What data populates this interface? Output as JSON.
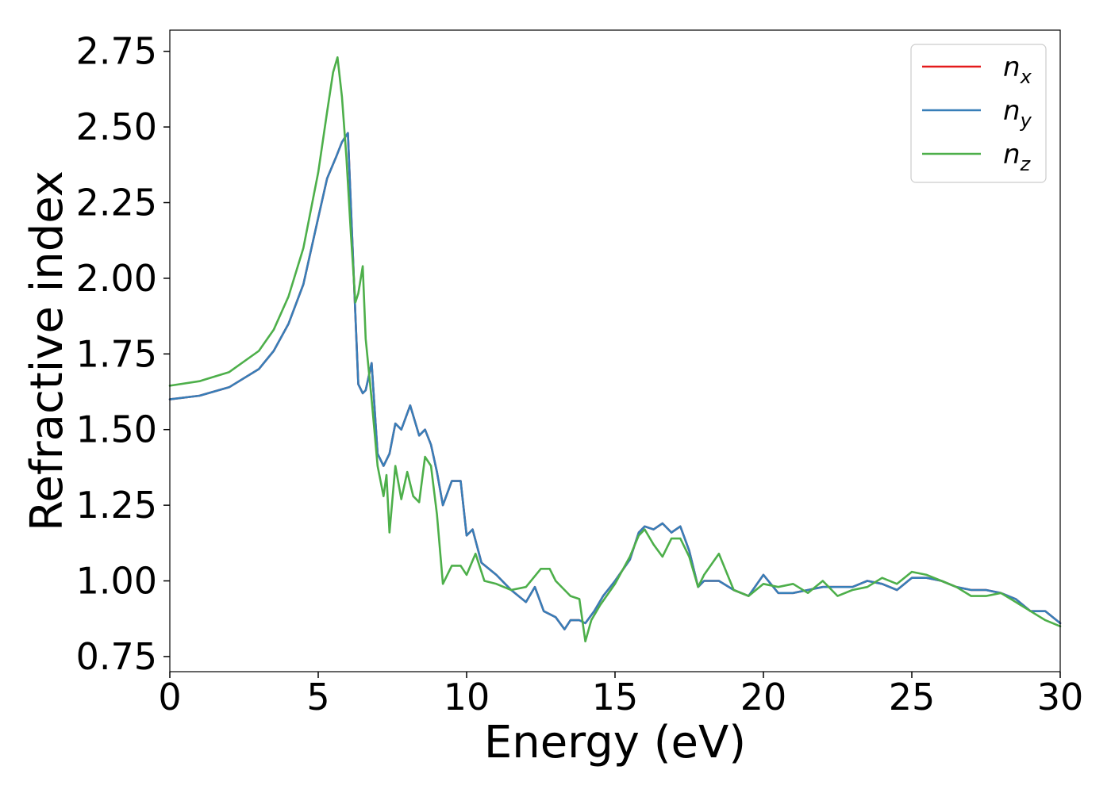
{
  "chart_data": {
    "type": "line",
    "xlabel": "Energy (eV)",
    "ylabel": "Refractive index",
    "xlim": [
      0,
      30
    ],
    "ylim": [
      0.7,
      2.82
    ],
    "xticks": [
      0,
      5,
      10,
      15,
      20,
      25,
      30
    ],
    "xtick_labels": [
      "0",
      "5",
      "10",
      "15",
      "20",
      "25",
      "30"
    ],
    "yticks": [
      0.75,
      1.0,
      1.25,
      1.5,
      1.75,
      2.0,
      2.25,
      2.5,
      2.75
    ],
    "ytick_labels": [
      "0.75",
      "1.00",
      "1.25",
      "1.50",
      "1.75",
      "2.00",
      "2.25",
      "2.50",
      "2.75"
    ],
    "grid": false,
    "legend_position": "top-right",
    "series": [
      {
        "name": "n_x",
        "legend_main": "n",
        "legend_sub": "x",
        "color": "#e41a1c",
        "x": [
          0,
          1,
          2,
          3,
          3.5,
          4,
          4.5,
          5,
          5.3,
          5.6,
          5.8,
          6.0,
          6.2,
          6.35,
          6.5,
          6.6,
          6.8,
          7.0,
          7.2,
          7.4,
          7.6,
          7.8,
          8.1,
          8.4,
          8.6,
          8.8,
          9.0,
          9.2,
          9.5,
          9.8,
          10.0,
          10.2,
          10.5,
          11.0,
          11.5,
          12.0,
          12.3,
          12.6,
          13.0,
          13.3,
          13.5,
          13.8,
          14.0,
          14.3,
          14.6,
          15.0,
          15.5,
          15.8,
          16.0,
          16.3,
          16.6,
          16.9,
          17.2,
          17.5,
          17.8,
          18.0,
          18.5,
          19.0,
          19.5,
          20.0,
          20.5,
          21.0,
          21.5,
          22.0,
          22.5,
          23.0,
          23.5,
          24.0,
          24.5,
          25.0,
          25.5,
          26.0,
          26.5,
          27.0,
          27.5,
          28.0,
          28.5,
          29.0,
          29.5,
          30.0
        ],
        "y": [
          1.6,
          1.612,
          1.64,
          1.7,
          1.76,
          1.85,
          1.98,
          2.2,
          2.33,
          2.4,
          2.45,
          2.48,
          2.0,
          1.65,
          1.62,
          1.63,
          1.72,
          1.42,
          1.38,
          1.42,
          1.52,
          1.5,
          1.58,
          1.48,
          1.5,
          1.45,
          1.36,
          1.25,
          1.33,
          1.33,
          1.15,
          1.17,
          1.06,
          1.02,
          0.97,
          0.93,
          0.98,
          0.9,
          0.88,
          0.84,
          0.87,
          0.87,
          0.86,
          0.9,
          0.95,
          1.0,
          1.07,
          1.16,
          1.18,
          1.17,
          1.19,
          1.16,
          1.18,
          1.1,
          0.98,
          1.0,
          1.0,
          0.97,
          0.95,
          1.02,
          0.96,
          0.96,
          0.97,
          0.98,
          0.98,
          0.98,
          1.0,
          0.99,
          0.97,
          1.01,
          1.01,
          1.0,
          0.98,
          0.97,
          0.97,
          0.96,
          0.94,
          0.9,
          0.9,
          0.86
        ]
      },
      {
        "name": "n_y",
        "legend_main": "n",
        "legend_sub": "y",
        "color": "#377eb8",
        "x": [
          0,
          1,
          2,
          3,
          3.5,
          4,
          4.5,
          5,
          5.3,
          5.6,
          5.8,
          6.0,
          6.2,
          6.35,
          6.5,
          6.6,
          6.8,
          7.0,
          7.2,
          7.4,
          7.6,
          7.8,
          8.1,
          8.4,
          8.6,
          8.8,
          9.0,
          9.2,
          9.5,
          9.8,
          10.0,
          10.2,
          10.5,
          11.0,
          11.5,
          12.0,
          12.3,
          12.6,
          13.0,
          13.3,
          13.5,
          13.8,
          14.0,
          14.3,
          14.6,
          15.0,
          15.5,
          15.8,
          16.0,
          16.3,
          16.6,
          16.9,
          17.2,
          17.5,
          17.8,
          18.0,
          18.5,
          19.0,
          19.5,
          20.0,
          20.5,
          21.0,
          21.5,
          22.0,
          22.5,
          23.0,
          23.5,
          24.0,
          24.5,
          25.0,
          25.5,
          26.0,
          26.5,
          27.0,
          27.5,
          28.0,
          28.5,
          29.0,
          29.5,
          30.0
        ],
        "y": [
          1.6,
          1.612,
          1.64,
          1.7,
          1.76,
          1.85,
          1.98,
          2.2,
          2.33,
          2.4,
          2.45,
          2.48,
          2.0,
          1.65,
          1.62,
          1.63,
          1.72,
          1.42,
          1.38,
          1.42,
          1.52,
          1.5,
          1.58,
          1.48,
          1.5,
          1.45,
          1.36,
          1.25,
          1.33,
          1.33,
          1.15,
          1.17,
          1.06,
          1.02,
          0.97,
          0.93,
          0.98,
          0.9,
          0.88,
          0.84,
          0.87,
          0.87,
          0.86,
          0.9,
          0.95,
          1.0,
          1.07,
          1.16,
          1.18,
          1.17,
          1.19,
          1.16,
          1.18,
          1.1,
          0.98,
          1.0,
          1.0,
          0.97,
          0.95,
          1.02,
          0.96,
          0.96,
          0.97,
          0.98,
          0.98,
          0.98,
          1.0,
          0.99,
          0.97,
          1.01,
          1.01,
          1.0,
          0.98,
          0.97,
          0.97,
          0.96,
          0.94,
          0.9,
          0.9,
          0.86
        ]
      },
      {
        "name": "n_z",
        "legend_main": "n",
        "legend_sub": "z",
        "color": "#4daf4a",
        "x": [
          0,
          1,
          2,
          3,
          3.5,
          4,
          4.5,
          5,
          5.3,
          5.5,
          5.65,
          5.8,
          5.95,
          6.1,
          6.25,
          6.35,
          6.5,
          6.6,
          6.8,
          7.0,
          7.2,
          7.3,
          7.4,
          7.6,
          7.8,
          8.0,
          8.2,
          8.4,
          8.6,
          8.8,
          9.0,
          9.2,
          9.5,
          9.8,
          10.0,
          10.3,
          10.6,
          11.0,
          11.5,
          12.0,
          12.5,
          12.8,
          13.0,
          13.5,
          13.8,
          14.0,
          14.2,
          14.5,
          15.0,
          15.5,
          15.8,
          16.0,
          16.3,
          16.6,
          16.9,
          17.2,
          17.5,
          17.8,
          18.0,
          18.5,
          19.0,
          19.5,
          20.0,
          20.5,
          21.0,
          21.5,
          22.0,
          22.5,
          23.0,
          23.5,
          24.0,
          24.5,
          25.0,
          25.5,
          26.0,
          26.5,
          27.0,
          27.5,
          28.0,
          28.5,
          29.0,
          29.5,
          30.0
        ],
        "y": [
          1.645,
          1.66,
          1.69,
          1.76,
          1.83,
          1.94,
          2.1,
          2.35,
          2.55,
          2.68,
          2.73,
          2.6,
          2.4,
          2.15,
          1.92,
          1.95,
          2.04,
          1.8,
          1.6,
          1.38,
          1.28,
          1.35,
          1.16,
          1.38,
          1.27,
          1.36,
          1.28,
          1.26,
          1.41,
          1.38,
          1.22,
          0.99,
          1.05,
          1.05,
          1.02,
          1.09,
          1.0,
          0.99,
          0.97,
          0.98,
          1.04,
          1.04,
          1.0,
          0.95,
          0.94,
          0.8,
          0.87,
          0.92,
          0.99,
          1.08,
          1.15,
          1.17,
          1.12,
          1.08,
          1.14,
          1.14,
          1.08,
          0.98,
          1.02,
          1.09,
          0.97,
          0.95,
          0.99,
          0.98,
          0.99,
          0.96,
          1.0,
          0.95,
          0.97,
          0.98,
          1.01,
          0.99,
          1.03,
          1.02,
          1.0,
          0.98,
          0.95,
          0.95,
          0.96,
          0.93,
          0.9,
          0.87,
          0.85
        ]
      }
    ]
  }
}
